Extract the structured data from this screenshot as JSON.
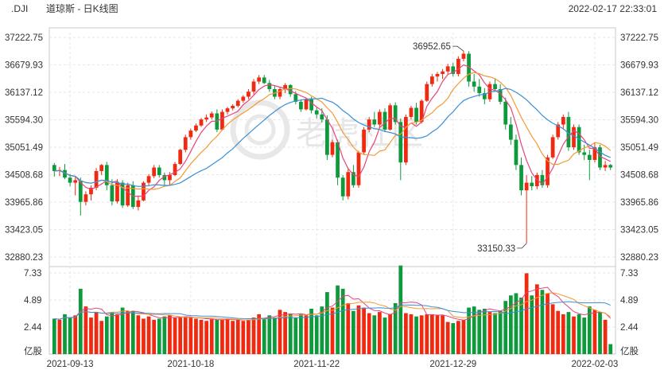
{
  "header": {
    "symbol": ".DJI",
    "name": "道琼斯 - 日K线图",
    "timestamp": "2022-02-17 22:33:01"
  },
  "watermark": "老虎社区",
  "colors": {
    "up": "#ef2a10",
    "down": "#0e9a3c",
    "ma5": "#e8437a",
    "ma10": "#f39a34",
    "ma20": "#3a8fd6"
  },
  "chart_data": {
    "type": "candlestick",
    "price_axis": {
      "ticks": [
        "37222.75",
        "36679.93",
        "36137.12",
        "35594.30",
        "35051.49",
        "34508.68",
        "33965.86",
        "33423.05",
        "32880.23"
      ],
      "range": [
        32880.23,
        37222.75
      ]
    },
    "volume_axis": {
      "ticks": [
        "7.33",
        "4.89",
        "2.44",
        "亿股"
      ],
      "range": [
        0,
        7.33
      ]
    },
    "x_ticks": [
      "2021-09-13",
      "2021-10-18",
      "2021-11-22",
      "2021-12-29",
      "2022-02-03"
    ],
    "annotations": {
      "high": "36952.65",
      "low": "33150.33"
    },
    "candles": [
      [
        34700,
        34740,
        34470,
        34580,
        3.2
      ],
      [
        34580,
        34660,
        34480,
        34600,
        3.1
      ],
      [
        34600,
        34720,
        34420,
        34450,
        3.6
      ],
      [
        34450,
        34520,
        34280,
        34350,
        3.3
      ],
      [
        34350,
        34480,
        34100,
        34400,
        3.5
      ],
      [
        34380,
        34450,
        33700,
        33970,
        5.9
      ],
      [
        33970,
        34180,
        33900,
        34120,
        4.3
      ],
      [
        34120,
        34300,
        34000,
        34250,
        3.3
      ],
      [
        34250,
        34640,
        34200,
        34580,
        3.8
      ],
      [
        34580,
        34720,
        34500,
        34700,
        3.0
      ],
      [
        34700,
        34760,
        34200,
        34300,
        3.4
      ],
      [
        34300,
        34420,
        33900,
        33980,
        3.8
      ],
      [
        33980,
        34420,
        33940,
        34350,
        3.6
      ],
      [
        34350,
        34400,
        33850,
        33900,
        4.2
      ],
      [
        33900,
        34350,
        33870,
        34300,
        3.9
      ],
      [
        34300,
        34380,
        33830,
        33870,
        3.9
      ],
      [
        33870,
        34080,
        33800,
        34000,
        3.5
      ],
      [
        34000,
        34380,
        33980,
        34350,
        3.2
      ],
      [
        34350,
        34520,
        34300,
        34480,
        3.4
      ],
      [
        34480,
        34700,
        34440,
        34650,
        3.1
      ],
      [
        34650,
        34700,
        34450,
        34500,
        3.2
      ],
      [
        34500,
        34550,
        34280,
        34400,
        3.4
      ],
      [
        34400,
        34560,
        34300,
        34500,
        3.5
      ],
      [
        34500,
        34760,
        34480,
        34720,
        3.3
      ],
      [
        34720,
        35020,
        34700,
        35000,
        3.3
      ],
      [
        35000,
        35300,
        34950,
        35250,
        3.4
      ],
      [
        35250,
        35420,
        35200,
        35380,
        3.3
      ],
      [
        35380,
        35520,
        35350,
        35480,
        3.2
      ],
      [
        35480,
        35630,
        35450,
        35600,
        3.1
      ],
      [
        35600,
        35700,
        35550,
        35640,
        3.0
      ],
      [
        35640,
        35760,
        35600,
        35720,
        3.2
      ],
      [
        35720,
        35800,
        35350,
        35400,
        3.1
      ],
      [
        35400,
        35800,
        35380,
        35750,
        3.1
      ],
      [
        35750,
        35850,
        35700,
        35820,
        3.2
      ],
      [
        35820,
        35900,
        35780,
        35870,
        3.0
      ],
      [
        35870,
        36000,
        35840,
        35970,
        3.1
      ],
      [
        35970,
        36080,
        35930,
        36050,
        3.0
      ],
      [
        36050,
        36200,
        36000,
        36150,
        3.1
      ],
      [
        36150,
        36400,
        36100,
        36350,
        3.3
      ],
      [
        36350,
        36480,
        36300,
        36430,
        3.6
      ],
      [
        36430,
        36480,
        36300,
        36320,
        3.2
      ],
      [
        36320,
        36380,
        36150,
        36200,
        3.5
      ],
      [
        36200,
        36260,
        36000,
        36050,
        3.3
      ],
      [
        36050,
        36240,
        36000,
        36200,
        4.0
      ],
      [
        36200,
        36320,
        36120,
        36280,
        3.8
      ],
      [
        36280,
        36300,
        36050,
        36100,
        3.6
      ],
      [
        36100,
        36160,
        35900,
        35950,
        3.3
      ],
      [
        35950,
        36000,
        35750,
        35800,
        3.6
      ],
      [
        35800,
        36030,
        35780,
        36000,
        3.5
      ],
      [
        36000,
        36050,
        35720,
        35780,
        4.1
      ],
      [
        35780,
        35850,
        35620,
        35700,
        3.5
      ],
      [
        35700,
        35820,
        35540,
        35600,
        4.3
      ],
      [
        35600,
        35680,
        34800,
        34900,
        5.6
      ],
      [
        34900,
        35200,
        34850,
        35150,
        4.2
      ],
      [
        35150,
        35200,
        34300,
        34450,
        6.2
      ],
      [
        34450,
        34500,
        34000,
        34080,
        5.9
      ],
      [
        34080,
        34620,
        34020,
        34560,
        4.6
      ],
      [
        34560,
        34700,
        34250,
        34300,
        3.9
      ],
      [
        34300,
        34980,
        34250,
        34950,
        4.4
      ],
      [
        34950,
        35450,
        34900,
        35400,
        4.2
      ],
      [
        35400,
        35650,
        35350,
        35600,
        3.7
      ],
      [
        35600,
        35750,
        35450,
        35500,
        3.5
      ],
      [
        35500,
        35800,
        35450,
        35750,
        3.8
      ],
      [
        35750,
        35820,
        35350,
        35400,
        3.3
      ],
      [
        35400,
        35920,
        35380,
        35880,
        3.6
      ],
      [
        35880,
        35940,
        35500,
        35550,
        4.6
      ],
      [
        35550,
        35620,
        34400,
        34750,
        8.0
      ],
      [
        34750,
        35700,
        34700,
        35650,
        3.7
      ],
      [
        35650,
        35870,
        35600,
        35830,
        3.6
      ],
      [
        35830,
        35930,
        35500,
        35550,
        3.4
      ],
      [
        35550,
        36000,
        35520,
        35970,
        3.5
      ],
      [
        35970,
        36350,
        35950,
        36300,
        3.6
      ],
      [
        36300,
        36500,
        36250,
        36450,
        3.6
      ],
      [
        36450,
        36540,
        36350,
        36500,
        3.5
      ],
      [
        36500,
        36600,
        36400,
        36550,
        3.5
      ],
      [
        36550,
        36700,
        36500,
        36650,
        2.9
      ],
      [
        36650,
        36720,
        36450,
        36500,
        2.8
      ],
      [
        36500,
        36850,
        36450,
        36800,
        3.0
      ],
      [
        36800,
        36953,
        36750,
        36900,
        3.1
      ],
      [
        36900,
        36950,
        36250,
        36350,
        4.2
      ],
      [
        36350,
        36500,
        36150,
        36250,
        4.3
      ],
      [
        36250,
        36400,
        36050,
        36120,
        4.0
      ],
      [
        36120,
        36220,
        35900,
        36000,
        4.1
      ],
      [
        36000,
        36350,
        35950,
        36300,
        3.8
      ],
      [
        36300,
        36400,
        36150,
        36200,
        3.7
      ],
      [
        36200,
        36300,
        35900,
        35950,
        3.9
      ],
      [
        35950,
        36030,
        35400,
        35500,
        4.8
      ],
      [
        35500,
        35650,
        35100,
        35200,
        5.3
      ],
      [
        35200,
        35300,
        34600,
        34700,
        5.5
      ],
      [
        34700,
        34850,
        34100,
        34200,
        5.1
      ],
      [
        34200,
        34500,
        33150,
        34350,
        7.3
      ],
      [
        34350,
        34480,
        34200,
        34280,
        5.3
      ],
      [
        34280,
        34550,
        34220,
        34500,
        6.3
      ],
      [
        34500,
        34600,
        34250,
        34300,
        5.8
      ],
      [
        34300,
        34900,
        34250,
        34850,
        5.5
      ],
      [
        34850,
        35300,
        34820,
        35250,
        4.5
      ],
      [
        35250,
        35550,
        35200,
        35500,
        3.9
      ],
      [
        35500,
        35700,
        35400,
        35650,
        3.6
      ],
      [
        35650,
        35750,
        34980,
        35050,
        3.8
      ],
      [
        35050,
        35500,
        35000,
        35450,
        3.4
      ],
      [
        35450,
        35500,
        34900,
        34950,
        3.6
      ],
      [
        34950,
        35100,
        34800,
        34900,
        3.3
      ],
      [
        34900,
        35000,
        34400,
        34800,
        4.3
      ],
      [
        34800,
        35150,
        34750,
        35050,
        4.0
      ],
      [
        35050,
        35100,
        34600,
        34650,
        3.8
      ],
      [
        34650,
        34780,
        34580,
        34700,
        3.1
      ],
      [
        34700,
        34720,
        34600,
        34650,
        0.9
      ]
    ]
  }
}
